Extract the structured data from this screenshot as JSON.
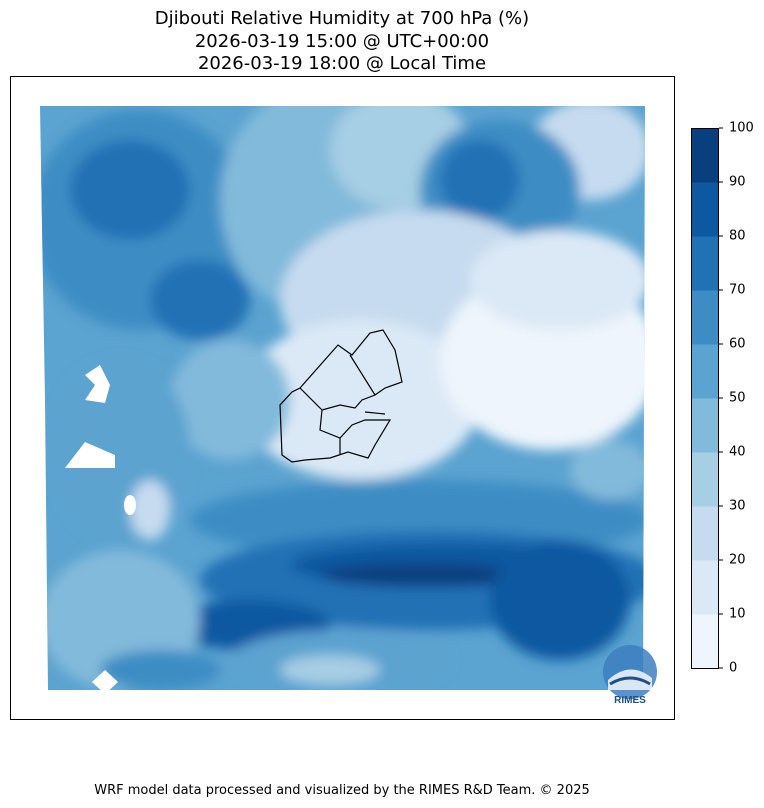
{
  "title": {
    "line1": "Djibouti Relative Humidity at 700 hPa (%)",
    "line2": "2026-03-19 15:00 @ UTC+00:00",
    "line3": "2026-03-19 18:00 @ Local Time"
  },
  "colorbar": {
    "ticks": [
      "0",
      "10",
      "20",
      "30",
      "40",
      "50",
      "60",
      "70",
      "80",
      "90",
      "100"
    ],
    "colors": [
      "#eef5fc",
      "#dbe9f6",
      "#c6dbef",
      "#a6cee4",
      "#82badb",
      "#5ba3d0",
      "#3d8dc4",
      "#2171b5",
      "#0d58a1",
      "#08407f"
    ]
  },
  "logo": {
    "text": "RIMES"
  },
  "footer": "WRF model data processed and visualized by the RIMES R&D Team. © 2025"
}
